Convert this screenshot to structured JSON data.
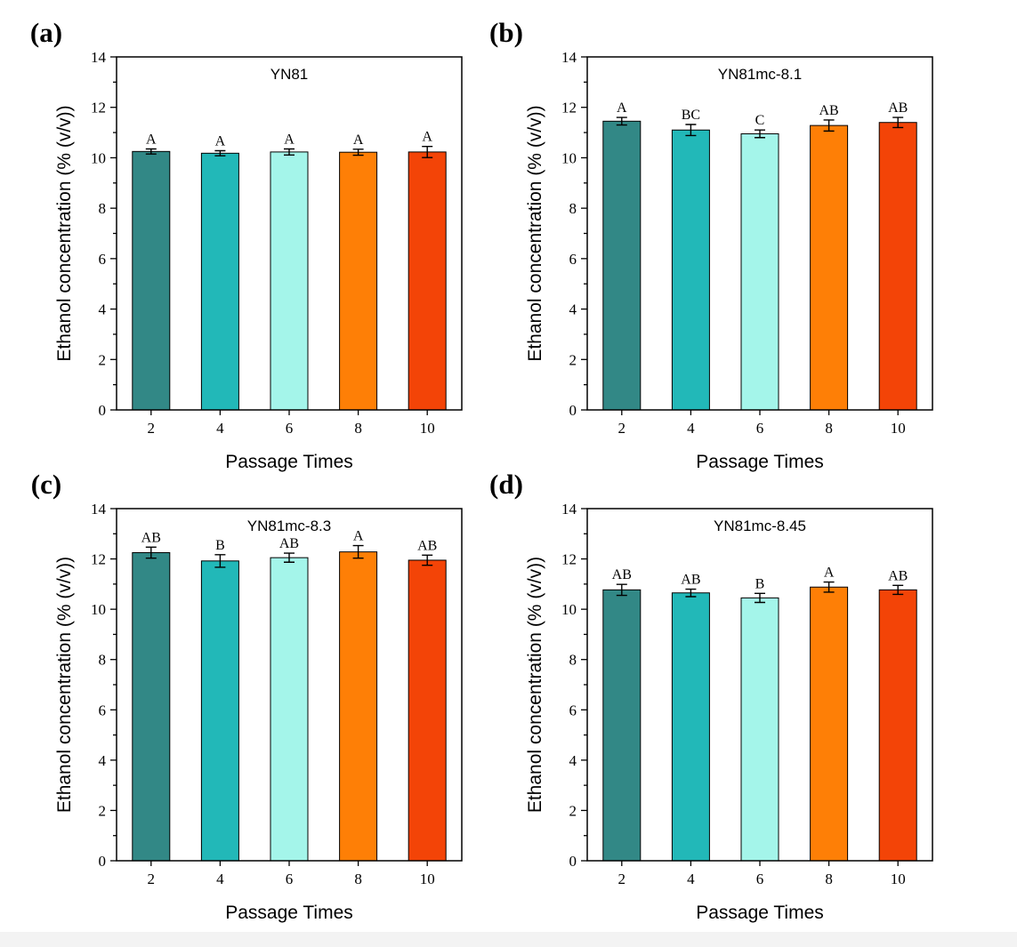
{
  "chart_data": [
    {
      "type": "bar",
      "panel": "(a)",
      "title": "YN81",
      "xlabel": "Passage Times",
      "ylabel": "Ethanol concentration (% (v/v))",
      "categories": [
        "2",
        "4",
        "6",
        "8",
        "10"
      ],
      "values": [
        10.25,
        10.18,
        10.23,
        10.22,
        10.23
      ],
      "errors": [
        0.1,
        0.1,
        0.12,
        0.12,
        0.22
      ],
      "labels": [
        "A",
        "A",
        "A",
        "A",
        "A"
      ],
      "ylim": [
        0,
        14
      ],
      "yticks": [
        "0",
        "2",
        "4",
        "6",
        "8",
        "10",
        "12",
        "14"
      ],
      "colors": [
        "#328886",
        "#22b8b8",
        "#a4f5ea",
        "#fe7f06",
        "#f34407"
      ]
    },
    {
      "type": "bar",
      "panel": "(b)",
      "title": "YN81mc-8.1",
      "xlabel": "Passage Times",
      "ylabel": "Ethanol concentration (% (v/v))",
      "categories": [
        "2",
        "4",
        "6",
        "8",
        "10"
      ],
      "values": [
        11.45,
        11.1,
        10.95,
        11.28,
        11.4
      ],
      "errors": [
        0.15,
        0.22,
        0.15,
        0.22,
        0.2
      ],
      "labels": [
        "A",
        "BC",
        "C",
        "AB",
        "AB"
      ],
      "ylim": [
        0,
        14
      ],
      "yticks": [
        "0",
        "2",
        "4",
        "6",
        "8",
        "10",
        "12",
        "14"
      ],
      "colors": [
        "#328886",
        "#22b8b8",
        "#a4f5ea",
        "#fe7f06",
        "#f34407"
      ]
    },
    {
      "type": "bar",
      "panel": "(c)",
      "title": "YN81mc-8.3",
      "xlabel": "Passage Times",
      "ylabel": "Ethanol concentration (% (v/v))",
      "categories": [
        "2",
        "4",
        "6",
        "8",
        "10"
      ],
      "values": [
        12.25,
        11.92,
        12.05,
        12.28,
        11.95
      ],
      "errors": [
        0.22,
        0.25,
        0.18,
        0.25,
        0.2
      ],
      "labels": [
        "AB",
        "B",
        "AB",
        "A",
        "AB"
      ],
      "ylim": [
        0,
        14
      ],
      "yticks": [
        "0",
        "2",
        "4",
        "6",
        "8",
        "10",
        "12",
        "14"
      ],
      "colors": [
        "#328886",
        "#22b8b8",
        "#a4f5ea",
        "#fe7f06",
        "#f34407"
      ]
    },
    {
      "type": "bar",
      "panel": "(d)",
      "title": "YN81mc-8.45",
      "xlabel": "Passage Times",
      "ylabel": "Ethanol concentration (% (v/v))",
      "categories": [
        "2",
        "4",
        "6",
        "8",
        "10"
      ],
      "values": [
        10.77,
        10.65,
        10.45,
        10.88,
        10.77
      ],
      "errors": [
        0.22,
        0.15,
        0.18,
        0.2,
        0.18
      ],
      "labels": [
        "AB",
        "AB",
        "B",
        "A",
        "AB"
      ],
      "ylim": [
        0,
        14
      ],
      "yticks": [
        "0",
        "2",
        "4",
        "6",
        "8",
        "10",
        "12",
        "14"
      ],
      "colors": [
        "#328886",
        "#22b8b8",
        "#a4f5ea",
        "#fe7f06",
        "#f34407"
      ]
    }
  ]
}
